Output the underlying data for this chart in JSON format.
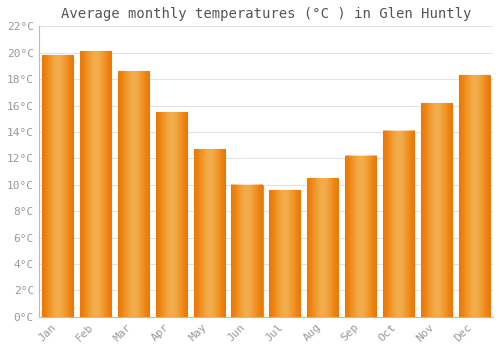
{
  "title": "Average monthly temperatures (°C ) in Glen Huntly",
  "months": [
    "Jan",
    "Feb",
    "Mar",
    "Apr",
    "May",
    "Jun",
    "Jul",
    "Aug",
    "Sep",
    "Oct",
    "Nov",
    "Dec"
  ],
  "values": [
    19.8,
    20.1,
    18.6,
    15.5,
    12.7,
    10.0,
    9.6,
    10.5,
    12.2,
    14.1,
    16.2,
    18.3
  ],
  "bar_color_center": "#FFB732",
  "bar_color_edge": "#E8920A",
  "ylim": [
    0,
    22
  ],
  "yticks": [
    0,
    2,
    4,
    6,
    8,
    10,
    12,
    14,
    16,
    18,
    20,
    22
  ],
  "grid_color": "#dddddd",
  "background_color": "#ffffff",
  "title_fontsize": 10,
  "tick_fontsize": 8,
  "tick_label_color": "#999999",
  "title_color": "#555555",
  "bar_width": 0.82
}
